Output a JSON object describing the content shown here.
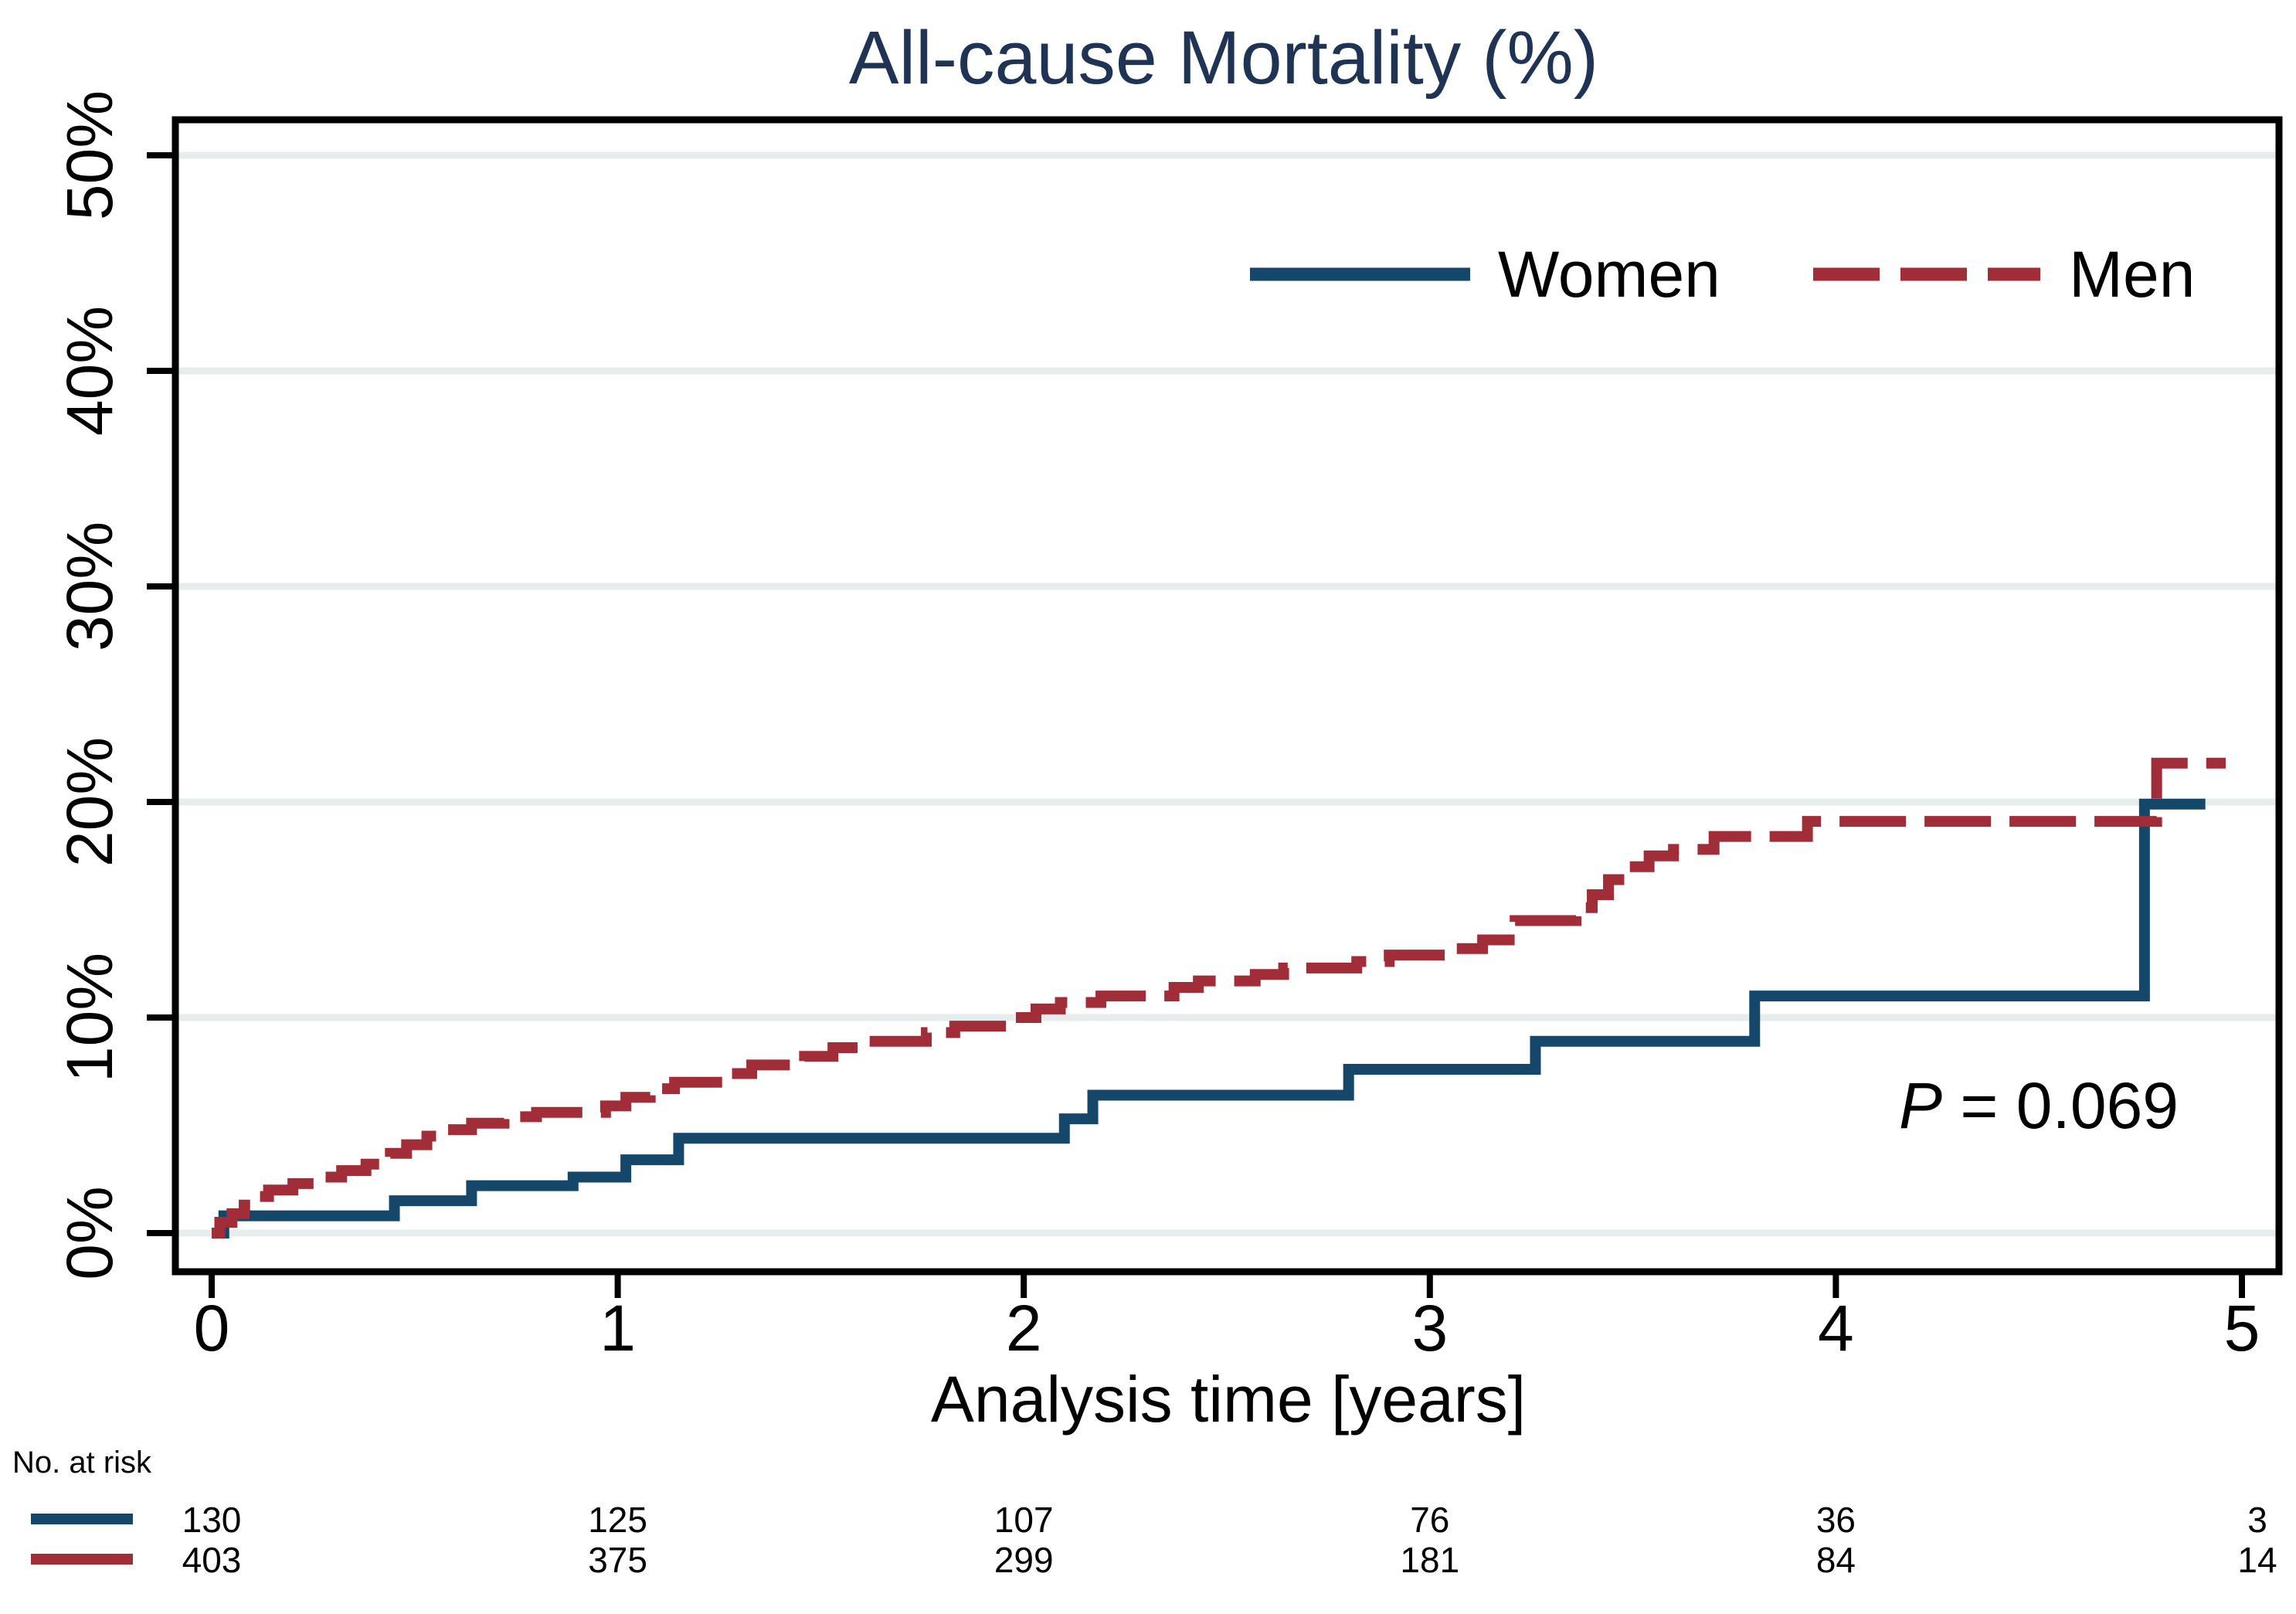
{
  "title": "All-cause Mortality (%)",
  "p_value": {
    "symbol": "P",
    "rest": " = 0.069"
  },
  "chart_data": {
    "type": "line",
    "subtype": "kaplan-meier-step-failure",
    "title": "All-cause Mortality (%)",
    "xlabel": "Analysis time [years]",
    "ylabel": "",
    "x_ticks": [
      0,
      1,
      2,
      3,
      4,
      5
    ],
    "y_ticks": [
      0,
      10,
      20,
      30,
      40,
      50
    ],
    "y_tick_labels": [
      "0%",
      "10%",
      "20%",
      "30%",
      "40%",
      "50%"
    ],
    "xlim": [
      0,
      5
    ],
    "ylim": [
      0,
      51.6
    ],
    "grid": true,
    "legend_position": "top-right-inside",
    "annotation": "P = 0.069",
    "colors": {
      "women": "#15476b",
      "men": "#a12d39",
      "title": "#1f3454",
      "grid": "#e7edec",
      "axis": "#000000"
    },
    "series": [
      {
        "name": "Women",
        "color": "#15476b",
        "style": "solid",
        "end_time": 4.91,
        "points": [
          [
            0,
            0
          ],
          [
            0.03,
            0.8
          ],
          [
            0.45,
            1.5
          ],
          [
            0.64,
            2.2
          ],
          [
            0.89,
            2.6
          ],
          [
            1.02,
            3.4
          ],
          [
            1.15,
            4.4
          ],
          [
            2.1,
            5.3
          ],
          [
            2.17,
            6.4
          ],
          [
            2.8,
            7.6
          ],
          [
            3.26,
            8.9
          ],
          [
            3.8,
            11.0
          ],
          [
            4.76,
            19.9
          ]
        ]
      },
      {
        "name": "Men",
        "color": "#a12d39",
        "style": "dashed",
        "end_time": 4.96,
        "points": [
          [
            0,
            0
          ],
          [
            0.02,
            0.5
          ],
          [
            0.05,
            0.9
          ],
          [
            0.08,
            1.3
          ],
          [
            0.11,
            1.7
          ],
          [
            0.14,
            2.0
          ],
          [
            0.2,
            2.3
          ],
          [
            0.26,
            2.6
          ],
          [
            0.32,
            2.9
          ],
          [
            0.38,
            3.2
          ],
          [
            0.44,
            3.7
          ],
          [
            0.48,
            4.1
          ],
          [
            0.53,
            4.5
          ],
          [
            0.58,
            4.8
          ],
          [
            0.64,
            5.1
          ],
          [
            0.72,
            5.4
          ],
          [
            0.8,
            5.6
          ],
          [
            0.97,
            5.9
          ],
          [
            1.02,
            6.3
          ],
          [
            1.08,
            6.7
          ],
          [
            1.14,
            7.0
          ],
          [
            1.27,
            7.4
          ],
          [
            1.33,
            7.8
          ],
          [
            1.46,
            8.2
          ],
          [
            1.53,
            8.6
          ],
          [
            1.62,
            8.9
          ],
          [
            1.76,
            9.3
          ],
          [
            1.83,
            9.6
          ],
          [
            1.96,
            10.0
          ],
          [
            2.03,
            10.4
          ],
          [
            2.09,
            10.7
          ],
          [
            2.19,
            11.0
          ],
          [
            2.37,
            11.4
          ],
          [
            2.43,
            11.7
          ],
          [
            2.57,
            12.0
          ],
          [
            2.64,
            12.3
          ],
          [
            2.82,
            12.6
          ],
          [
            2.9,
            12.9
          ],
          [
            3.06,
            13.2
          ],
          [
            3.13,
            13.6
          ],
          [
            3.21,
            14.5
          ],
          [
            3.36,
            15.1
          ],
          [
            3.4,
            15.7
          ],
          [
            3.44,
            16.4
          ],
          [
            3.48,
            17.0
          ],
          [
            3.54,
            17.5
          ],
          [
            3.6,
            17.8
          ],
          [
            3.7,
            18.4
          ],
          [
            3.93,
            19.1
          ],
          [
            4.79,
            21.8
          ]
        ]
      }
    ],
    "at_risk": {
      "label": "No. at risk",
      "times": [
        0,
        1,
        2,
        3,
        4,
        5
      ],
      "rows": [
        {
          "series": "Women",
          "color": "#15476b",
          "counts": [
            130,
            125,
            107,
            76,
            36,
            3
          ]
        },
        {
          "series": "Men",
          "color": "#a12d39",
          "counts": [
            403,
            375,
            299,
            181,
            84,
            14
          ]
        }
      ]
    }
  }
}
